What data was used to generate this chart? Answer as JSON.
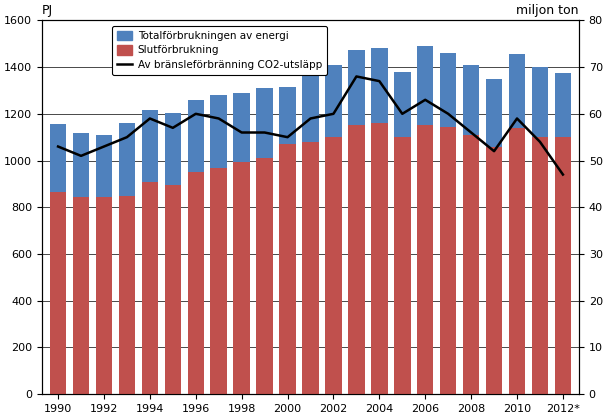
{
  "years": [
    1990,
    1991,
    1992,
    1993,
    1994,
    1995,
    1996,
    1997,
    1998,
    1999,
    2000,
    2001,
    2002,
    2003,
    2004,
    2005,
    2006,
    2007,
    2008,
    2009,
    2010,
    2011,
    2012
  ],
  "total_energy": [
    1155,
    1120,
    1110,
    1160,
    1215,
    1205,
    1260,
    1280,
    1290,
    1310,
    1315,
    1380,
    1410,
    1475,
    1480,
    1380,
    1490,
    1460,
    1410,
    1350,
    1455,
    1400,
    1375
  ],
  "slutforbrukning": [
    865,
    845,
    845,
    850,
    910,
    895,
    950,
    970,
    995,
    1010,
    1070,
    1080,
    1100,
    1150,
    1160,
    1100,
    1150,
    1145,
    1110,
    1060,
    1140,
    1100,
    1100
  ],
  "co2": [
    53,
    51,
    53,
    55,
    59,
    57,
    60,
    59,
    56,
    56,
    55,
    59,
    60,
    68,
    67,
    60,
    63,
    60,
    56,
    52,
    59,
    54,
    47
  ],
  "bar_color_total": "#4F81BD",
  "bar_color_slut": "#C0504D",
  "line_color": "#000000",
  "ylabel_left": "PJ",
  "ylabel_right": "miljon ton",
  "ylim_left": [
    0,
    1600
  ],
  "ylim_right": [
    0,
    80
  ],
  "yticks_left": [
    0,
    200,
    400,
    600,
    800,
    1000,
    1200,
    1400,
    1600
  ],
  "yticks_right": [
    0,
    10,
    20,
    30,
    40,
    50,
    60,
    70,
    80
  ],
  "legend_total": "Totalförbrukningen av energi",
  "legend_slut": "Slutförbrukning",
  "legend_co2": "Av bränsleförbränning CO2-utsläpp",
  "xtick_labels": [
    "1990",
    "1992",
    "1994",
    "1996",
    "1998",
    "2000",
    "2002",
    "2004",
    "2006",
    "2008",
    "2010",
    "2012*"
  ],
  "xtick_positions": [
    1990,
    1992,
    1994,
    1996,
    1998,
    2000,
    2002,
    2004,
    2006,
    2008,
    2010,
    2012
  ],
  "figsize": [
    6.07,
    4.18
  ],
  "dpi": 100
}
